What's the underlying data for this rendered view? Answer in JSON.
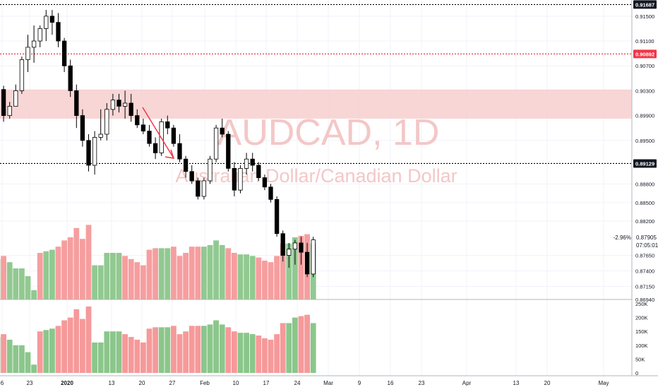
{
  "chart_data": [
    {
      "type": "candlestick",
      "symbol": "AUDCAD, 1D",
      "description": "Australian Dollar/Canadian Dollar",
      "ylim": [
        0.8694,
        0.9176
      ],
      "price_ticks": [
        "0.91500",
        "0.91100",
        "0.90700",
        "0.90300",
        "0.89900",
        "0.89500",
        "0.88800",
        "0.88500",
        "0.88200",
        "0.87650",
        "0.87400",
        "0.87150",
        "0.86940"
      ],
      "horizontal_lines": [
        {
          "value": 0.91687,
          "label": "0.91687",
          "color": "#000000",
          "style": "dotted"
        },
        {
          "value": 0.90892,
          "label": "0.90892",
          "color": "#f23645",
          "style": "dotted"
        },
        {
          "value": 0.89129,
          "label": "0.89129",
          "color": "#000000",
          "style": "dotted"
        }
      ],
      "zone": {
        "from": 0.8985,
        "to": 0.9032,
        "color": "#f7c8c8"
      },
      "last_price": {
        "value": 0.87905,
        "label": "0.87905",
        "change": "-2.96%",
        "countdown": "07:05:01"
      },
      "candles": [
        [
          0.9011,
          0.904,
          0.8985,
          0.9032
        ],
        [
          0.9032,
          0.9038,
          0.898,
          0.899
        ],
        [
          0.899,
          0.9012,
          0.8985,
          0.9005
        ],
        [
          0.9005,
          0.904,
          0.9005,
          0.903
        ],
        [
          0.903,
          0.9085,
          0.9025,
          0.908
        ],
        [
          0.908,
          0.912,
          0.906,
          0.91
        ],
        [
          0.91,
          0.9135,
          0.9075,
          0.911
        ],
        [
          0.911,
          0.9135,
          0.91,
          0.913
        ],
        [
          0.913,
          0.916,
          0.911,
          0.915
        ],
        [
          0.915,
          0.916,
          0.912,
          0.914
        ],
        [
          0.914,
          0.9155,
          0.91,
          0.911
        ],
        [
          0.911,
          0.9115,
          0.906,
          0.907
        ],
        [
          0.907,
          0.908,
          0.902,
          0.903
        ],
        [
          0.903,
          0.904,
          0.897,
          0.899
        ],
        [
          0.899,
          0.9,
          0.894,
          0.895
        ],
        [
          0.895,
          0.896,
          0.89,
          0.891
        ],
        [
          0.891,
          0.8965,
          0.8895,
          0.8955
        ],
        [
          0.8955,
          0.9,
          0.895,
          0.896
        ],
        [
          0.896,
          0.901,
          0.895,
          0.9
        ],
        [
          0.9,
          0.9025,
          0.899,
          0.9015
        ],
        [
          0.9015,
          0.9025,
          0.8995,
          0.9005
        ],
        [
          0.9005,
          0.903,
          0.8985,
          0.901
        ],
        [
          0.901,
          0.9025,
          0.898,
          0.899
        ],
        [
          0.899,
          0.9,
          0.897,
          0.8975
        ],
        [
          0.8975,
          0.8985,
          0.896,
          0.8965
        ],
        [
          0.8965,
          0.8975,
          0.894,
          0.8945
        ],
        [
          0.8945,
          0.8955,
          0.892,
          0.893
        ],
        [
          0.893,
          0.8985,
          0.8925,
          0.898
        ],
        [
          0.898,
          0.899,
          0.896,
          0.897
        ],
        [
          0.897,
          0.8975,
          0.894,
          0.8945
        ],
        [
          0.8945,
          0.896,
          0.8915,
          0.892
        ],
        [
          0.892,
          0.8925,
          0.889,
          0.89
        ],
        [
          0.89,
          0.891,
          0.888,
          0.8885
        ],
        [
          0.8885,
          0.889,
          0.8855,
          0.886
        ],
        [
          0.886,
          0.889,
          0.8855,
          0.8885
        ],
        [
          0.8885,
          0.8925,
          0.888,
          0.892
        ],
        [
          0.892,
          0.8975,
          0.8915,
          0.897
        ],
        [
          0.897,
          0.8985,
          0.8955,
          0.896
        ],
        [
          0.896,
          0.8965,
          0.89,
          0.8905
        ],
        [
          0.8905,
          0.8915,
          0.886,
          0.887
        ],
        [
          0.887,
          0.891,
          0.8865,
          0.8905
        ],
        [
          0.8905,
          0.893,
          0.8895,
          0.892
        ],
        [
          0.892,
          0.893,
          0.89,
          0.891
        ],
        [
          0.891,
          0.8915,
          0.8885,
          0.889
        ],
        [
          0.889,
          0.8895,
          0.887,
          0.8875
        ],
        [
          0.8875,
          0.888,
          0.885,
          0.8855
        ],
        [
          0.8855,
          0.886,
          0.8795,
          0.88
        ],
        [
          0.88,
          0.8805,
          0.8755,
          0.8765
        ],
        [
          0.8765,
          0.8785,
          0.8745,
          0.8775
        ],
        [
          0.8775,
          0.879,
          0.875,
          0.8785
        ],
        [
          0.8785,
          0.8795,
          0.875,
          0.877
        ],
        [
          0.877,
          0.8785,
          0.873,
          0.8735
        ],
        [
          0.8735,
          0.8795,
          0.873,
          0.879
        ]
      ],
      "volume_colors": [
        "up",
        "down",
        "up",
        "up",
        "up",
        "up",
        "up",
        "down",
        "up",
        "up",
        "down",
        "down",
        "down",
        "down",
        "down",
        "down",
        "up",
        "up",
        "up",
        "up",
        "up",
        "down",
        "down",
        "down",
        "down",
        "down",
        "down",
        "up",
        "up",
        "down",
        "down",
        "down",
        "down",
        "down",
        "up",
        "up",
        "up",
        "up",
        "down",
        "down",
        "up",
        "up",
        "up",
        "down",
        "down",
        "down",
        "down",
        "down",
        "up",
        "up",
        "down",
        "down",
        "up"
      ]
    },
    {
      "type": "bar",
      "title": "Volume",
      "ylim": [
        0,
        250000
      ],
      "y_ticks": [
        "250K",
        "200K",
        "150K",
        "100K",
        "50K",
        "0"
      ],
      "values": [
        130000,
        140000,
        120000,
        100000,
        100000,
        75000,
        30000,
        150000,
        155000,
        160000,
        170000,
        190000,
        200000,
        230000,
        195000,
        240000,
        110000,
        110000,
        150000,
        150000,
        150000,
        140000,
        130000,
        120000,
        110000,
        160000,
        165000,
        165000,
        165000,
        170000,
        140000,
        150000,
        170000,
        170000,
        170000,
        175000,
        190000,
        175000,
        165000,
        150000,
        145000,
        145000,
        140000,
        135000,
        125000,
        120000,
        140000,
        180000,
        180000,
        200000,
        205000,
        210000,
        180000
      ]
    }
  ],
  "x_axis": {
    "labels": [
      "6",
      "23",
      "2020",
      "13",
      "20",
      "27",
      "Feb",
      "10",
      "17",
      "24",
      "Mar",
      "9",
      "16",
      "23",
      "Apr",
      "13",
      "20",
      "May"
    ]
  },
  "colors": {
    "up": "#26a69a",
    "down": "#ef5350",
    "vol_up": "#8bc68b",
    "vol_down": "#f6999a",
    "watermark": "#f4c7c7"
  }
}
